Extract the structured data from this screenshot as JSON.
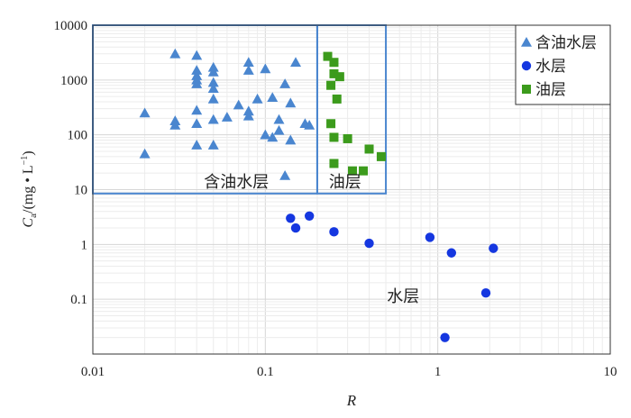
{
  "chart_data": {
    "type": "scatter",
    "xscale": "log",
    "yscale": "log",
    "xlim": [
      0.01,
      10
    ],
    "ylim": [
      0.01,
      10000
    ],
    "xlabel": "R",
    "ylabel": "Ca/(mg • L−1)",
    "ylabel_parts": {
      "main": "C",
      "sub": "a",
      "unit": "/(mg • L",
      "sup": "−1",
      "close": ")"
    },
    "x_tick_labels": [
      "0.01",
      "0.1",
      "1",
      "10"
    ],
    "x_tick_values": [
      0.01,
      0.1,
      1,
      10
    ],
    "y_tick_labels": [
      "0.1",
      "1",
      "10",
      "100",
      "1000",
      "10000"
    ],
    "y_tick_values": [
      0.1,
      1,
      10,
      100,
      1000,
      10000
    ],
    "grid": true,
    "legend_position": "top-right",
    "colors": {
      "oil_water": "#4a86cf",
      "water": "#1537e0",
      "oil": "#3c9b1c",
      "region_line": "#4a86cf"
    },
    "series": [
      {
        "name": "含油水层",
        "marker": "triangle",
        "points": [
          {
            "x": 0.02,
            "y": 250
          },
          {
            "x": 0.02,
            "y": 45
          },
          {
            "x": 0.03,
            "y": 3000
          },
          {
            "x": 0.03,
            "y": 180
          },
          {
            "x": 0.03,
            "y": 150
          },
          {
            "x": 0.04,
            "y": 2800
          },
          {
            "x": 0.04,
            "y": 1500
          },
          {
            "x": 0.04,
            "y": 1200
          },
          {
            "x": 0.04,
            "y": 1000
          },
          {
            "x": 0.04,
            "y": 850
          },
          {
            "x": 0.04,
            "y": 280
          },
          {
            "x": 0.04,
            "y": 160
          },
          {
            "x": 0.04,
            "y": 65
          },
          {
            "x": 0.05,
            "y": 1700
          },
          {
            "x": 0.05,
            "y": 1400
          },
          {
            "x": 0.05,
            "y": 900
          },
          {
            "x": 0.05,
            "y": 700
          },
          {
            "x": 0.05,
            "y": 450
          },
          {
            "x": 0.05,
            "y": 190
          },
          {
            "x": 0.05,
            "y": 65
          },
          {
            "x": 0.06,
            "y": 210
          },
          {
            "x": 0.07,
            "y": 350
          },
          {
            "x": 0.08,
            "y": 2100
          },
          {
            "x": 0.08,
            "y": 1500
          },
          {
            "x": 0.08,
            "y": 270
          },
          {
            "x": 0.08,
            "y": 220
          },
          {
            "x": 0.09,
            "y": 450
          },
          {
            "x": 0.1,
            "y": 1600
          },
          {
            "x": 0.1,
            "y": 100
          },
          {
            "x": 0.11,
            "y": 480
          },
          {
            "x": 0.11,
            "y": 90
          },
          {
            "x": 0.12,
            "y": 190
          },
          {
            "x": 0.12,
            "y": 120
          },
          {
            "x": 0.13,
            "y": 850
          },
          {
            "x": 0.13,
            "y": 18
          },
          {
            "x": 0.14,
            "y": 380
          },
          {
            "x": 0.14,
            "y": 80
          },
          {
            "x": 0.15,
            "y": 2100
          },
          {
            "x": 0.17,
            "y": 160
          },
          {
            "x": 0.18,
            "y": 150
          }
        ]
      },
      {
        "name": "水层",
        "marker": "circle",
        "points": [
          {
            "x": 0.14,
            "y": 3
          },
          {
            "x": 0.15,
            "y": 2
          },
          {
            "x": 0.18,
            "y": 3.3
          },
          {
            "x": 0.25,
            "y": 1.7
          },
          {
            "x": 0.4,
            "y": 1.05
          },
          {
            "x": 0.9,
            "y": 1.35
          },
          {
            "x": 1.1,
            "y": 0.02
          },
          {
            "x": 1.2,
            "y": 0.7
          },
          {
            "x": 1.9,
            "y": 0.13
          },
          {
            "x": 2.1,
            "y": 0.85
          }
        ]
      },
      {
        "name": "油层",
        "marker": "square",
        "points": [
          {
            "x": 0.23,
            "y": 2700
          },
          {
            "x": 0.25,
            "y": 2100
          },
          {
            "x": 0.25,
            "y": 1300
          },
          {
            "x": 0.27,
            "y": 1150
          },
          {
            "x": 0.24,
            "y": 800
          },
          {
            "x": 0.26,
            "y": 450
          },
          {
            "x": 0.24,
            "y": 160
          },
          {
            "x": 0.25,
            "y": 90
          },
          {
            "x": 0.3,
            "y": 85
          },
          {
            "x": 0.4,
            "y": 55
          },
          {
            "x": 0.47,
            "y": 40
          },
          {
            "x": 0.25,
            "y": 30
          },
          {
            "x": 0.32,
            "y": 22
          },
          {
            "x": 0.37,
            "y": 22
          }
        ]
      }
    ],
    "regions": [
      {
        "label": "含油水层",
        "x_range": [
          0.01,
          0.2
        ],
        "y_range": [
          8.5,
          10000
        ],
        "label_at": {
          "x": 0.068,
          "y": 11
        }
      },
      {
        "label": "油层",
        "x_range": [
          0.2,
          0.5
        ],
        "y_range": [
          8.5,
          10000
        ],
        "label_at": {
          "x": 0.29,
          "y": 11
        }
      }
    ],
    "annotations": [
      {
        "text": "水层",
        "at": {
          "x": 0.63,
          "y": 0.09
        }
      }
    ]
  }
}
